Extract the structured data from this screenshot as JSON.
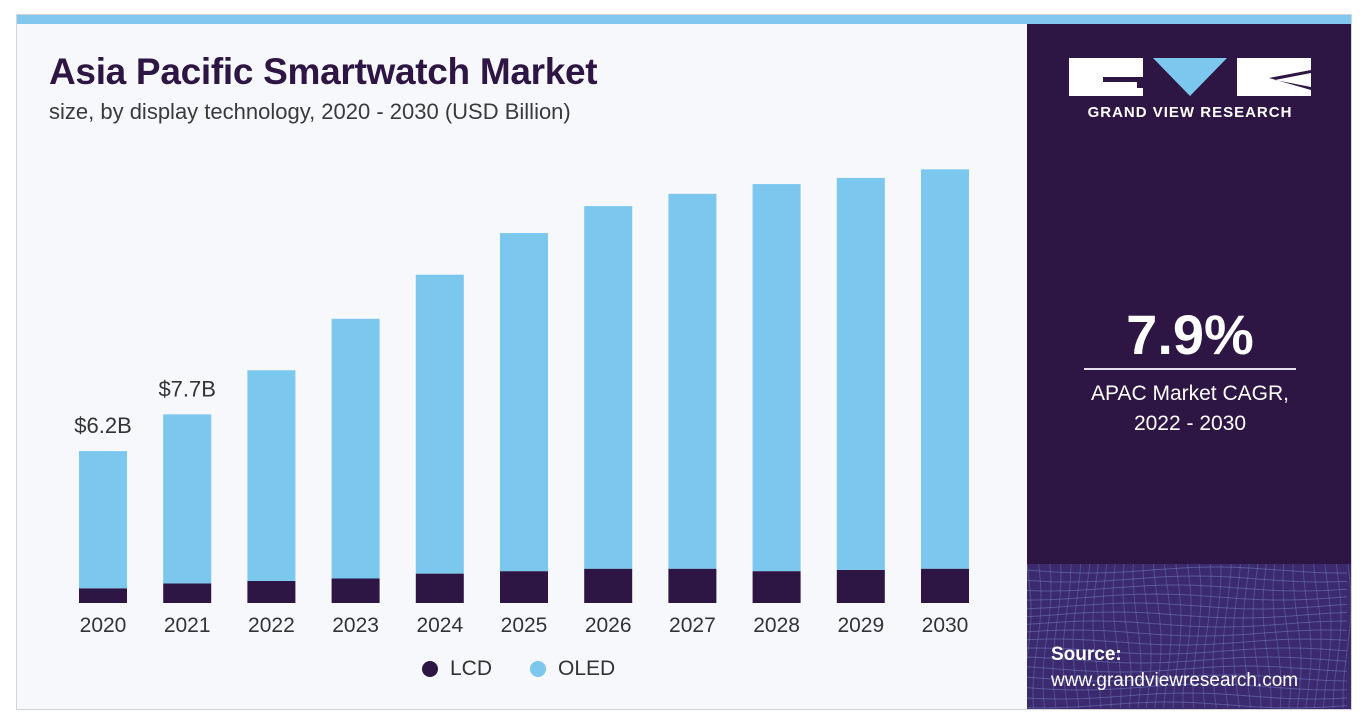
{
  "header": {
    "title": "Asia Pacific Smartwatch Market",
    "subtitle": "size, by display technology, 2020 - 2030 (USD Billion)"
  },
  "colors": {
    "lcd": "#2e1644",
    "oled": "#7cc7ee",
    "panel": "#2e1644",
    "background": "#f6f8fb",
    "accent_stripe": "#82c8ee"
  },
  "chart_data": {
    "type": "bar",
    "stacked": true,
    "categories": [
      "2020",
      "2021",
      "2022",
      "2023",
      "2024",
      "2025",
      "2026",
      "2027",
      "2028",
      "2029",
      "2030"
    ],
    "series": [
      {
        "name": "LCD",
        "values": [
          0.6,
          0.8,
          0.9,
          1.0,
          1.2,
          1.3,
          1.4,
          1.4,
          1.3,
          1.35,
          1.4
        ]
      },
      {
        "name": "OLED",
        "values": [
          5.6,
          6.9,
          8.6,
          10.6,
          12.2,
          13.8,
          14.8,
          15.3,
          15.8,
          16.0,
          16.3
        ]
      }
    ],
    "data_labels": [
      {
        "category": "2020",
        "text": "$6.2B"
      },
      {
        "category": "2021",
        "text": "$7.7B"
      }
    ],
    "ylim": [
      0,
      20
    ],
    "grid": false,
    "legend_position": "bottom"
  },
  "legend": [
    {
      "label": "LCD",
      "color": "#2e1644"
    },
    {
      "label": "OLED",
      "color": "#7cc7ee"
    }
  ],
  "sidebar": {
    "brand": "GRAND VIEW RESEARCH",
    "cagr_value": "7.9%",
    "cagr_label_line1": "APAC Market CAGR,",
    "cagr_label_line2": "2022 - 2030",
    "source_label": "Source:",
    "source_url": "www.grandviewresearch.com"
  }
}
